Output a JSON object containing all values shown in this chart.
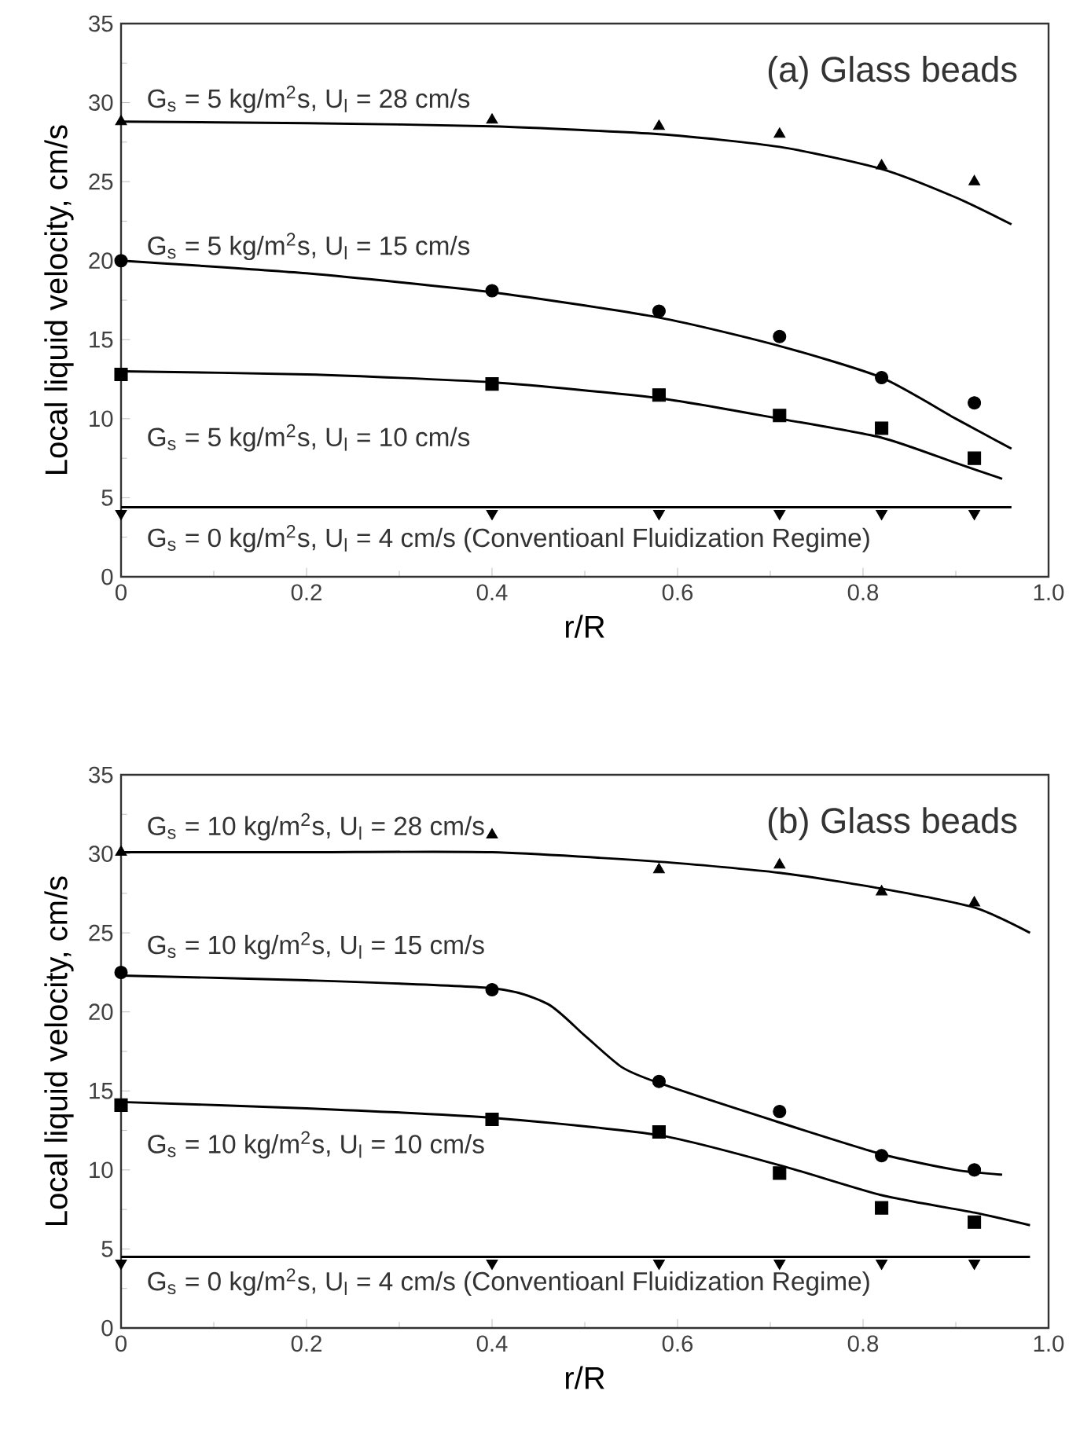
{
  "chart_data": [
    {
      "type": "scatter",
      "title": "(a) Glass beads",
      "xlabel": "r/R",
      "ylabel": "Local liquid velocity, cm/s",
      "xlim": [
        0,
        1
      ],
      "xticks": [
        0,
        0.2,
        0.4,
        0.6,
        0.8,
        {
          "value": 1,
          "label": "1.0"
        }
      ],
      "ylim": [
        0,
        35
      ],
      "yticks": [
        0,
        5,
        10,
        15,
        20,
        25,
        30,
        35
      ],
      "grid": false,
      "series": [
        {
          "marker": "triangle",
          "color": "#000000",
          "x": [
            0,
            0.4,
            0.58,
            0.71,
            0.82,
            0.92
          ],
          "values": [
            28.8,
            28.9,
            28.5,
            28.0,
            26.0,
            25.0
          ]
        },
        {
          "type": "line",
          "color": "#000000",
          "x": [
            0,
            0.2,
            0.4,
            0.58,
            0.71,
            0.82,
            0.9,
            0.96
          ],
          "values": [
            28.8,
            28.7,
            28.5,
            28.0,
            27.2,
            25.8,
            24.0,
            22.3
          ]
        },
        {
          "marker": "circle",
          "color": "#000000",
          "x": [
            0,
            0.4,
            0.58,
            0.71,
            0.82,
            0.92
          ],
          "values": [
            20.0,
            18.1,
            16.8,
            15.2,
            12.6,
            11.0
          ]
        },
        {
          "type": "line",
          "color": "#000000",
          "x": [
            0,
            0.2,
            0.4,
            0.58,
            0.71,
            0.82,
            0.9,
            0.96
          ],
          "values": [
            20.0,
            19.2,
            18.0,
            16.4,
            14.6,
            12.6,
            10.0,
            8.1
          ]
        },
        {
          "marker": "square",
          "color": "#000000",
          "x": [
            0,
            0.4,
            0.58,
            0.71,
            0.82,
            0.92
          ],
          "values": [
            12.8,
            12.2,
            11.5,
            10.2,
            9.4,
            7.5
          ]
        },
        {
          "type": "line",
          "color": "#000000",
          "x": [
            0,
            0.2,
            0.4,
            0.58,
            0.71,
            0.82,
            0.9,
            0.95
          ],
          "values": [
            13.0,
            12.8,
            12.3,
            11.3,
            10.0,
            8.8,
            7.2,
            6.2
          ]
        },
        {
          "marker": "triangle down",
          "color": "#000000",
          "x": [
            0,
            0.4,
            0.58,
            0.71,
            0.82,
            0.92
          ],
          "values": [
            4.0,
            4.0,
            4.0,
            4.0,
            4.0,
            4.0
          ]
        },
        {
          "type": "line",
          "color": "#000000",
          "x": [
            0,
            0.96
          ],
          "values": [
            4.4,
            4.4
          ]
        }
      ],
      "annotations": [
        "G$_{s}$ = 5 kg/m$^{2}$s, U$_{l}$ = 28 cm/s",
        "G$_{s}$ = 5 kg/m$^{2}$s, U$_{l}$ = 15 cm/s",
        "G$_{s}$ = 5 kg/m$^{2}$s, U$_{l}$ = 10 cm/s",
        "G$_{s}$ = 0 kg/m$^{2}$s, U$_{l}$ = 4 cm/s (Conventioanl Fluidization Regime)"
      ]
    },
    {
      "type": "scatter",
      "title": "(b) Glass beads",
      "xlabel": "r/R",
      "ylabel": "Local liquid velocity, cm/s",
      "xlim": [
        0,
        1
      ],
      "xticks": [
        0,
        0.2,
        0.4,
        0.6,
        0.8,
        {
          "value": 1,
          "label": "1.0"
        }
      ],
      "ylim": [
        0,
        35
      ],
      "yticks": [
        0,
        5,
        10,
        15,
        20,
        25,
        30,
        35
      ],
      "grid": false,
      "series": [
        {
          "marker": "triangle",
          "color": "#000000",
          "x": [
            0,
            0.4,
            0.58,
            0.71,
            0.82,
            0.92
          ],
          "values": [
            30.1,
            31.2,
            29.0,
            29.3,
            27.6,
            26.9
          ]
        },
        {
          "type": "line",
          "color": "#000000",
          "x": [
            0,
            0.2,
            0.4,
            0.58,
            0.71,
            0.82,
            0.92,
            0.98
          ],
          "values": [
            30.1,
            30.1,
            30.1,
            29.5,
            28.8,
            27.8,
            26.6,
            25.0
          ]
        },
        {
          "marker": "circle",
          "color": "#000000",
          "x": [
            0,
            0.4,
            0.58,
            0.71,
            0.82,
            0.92
          ],
          "values": [
            22.5,
            21.4,
            15.6,
            13.7,
            10.9,
            10.0
          ]
        },
        {
          "type": "line",
          "color": "#000000",
          "x": [
            0,
            0.2,
            0.4,
            0.46,
            0.5,
            0.54,
            0.58,
            0.71,
            0.82,
            0.9,
            0.95
          ],
          "values": [
            22.3,
            22.0,
            21.5,
            20.5,
            18.5,
            16.5,
            15.5,
            13.0,
            11.0,
            10.0,
            9.7
          ]
        },
        {
          "marker": "square",
          "color": "#000000",
          "x": [
            0,
            0.4,
            0.58,
            0.71,
            0.82,
            0.92
          ],
          "values": [
            14.1,
            13.2,
            12.4,
            9.8,
            7.6,
            6.7
          ]
        },
        {
          "type": "line",
          "color": "#000000",
          "x": [
            0,
            0.2,
            0.4,
            0.58,
            0.71,
            0.82,
            0.92,
            0.98
          ],
          "values": [
            14.3,
            13.9,
            13.3,
            12.2,
            10.3,
            8.4,
            7.3,
            6.5
          ]
        },
        {
          "marker": "triangle down",
          "color": "#000000",
          "x": [
            0,
            0.4,
            0.58,
            0.71,
            0.82,
            0.92
          ],
          "values": [
            4.1,
            4.1,
            4.1,
            4.1,
            4.1,
            4.1
          ]
        },
        {
          "type": "line",
          "color": "#000000",
          "x": [
            0,
            0.98
          ],
          "values": [
            4.5,
            4.5
          ]
        }
      ],
      "annotations": [
        "G$_{s}$ = 10 kg/m$^{2}$s, U$_{l}$ = 28 cm/s",
        "G$_{s}$ = 10 kg/m$^{2}$s, U$_{l}$ = 15 cm/s",
        "G$_{s}$ = 10 kg/m$^{2}$s, U$_{l}$ = 10 cm/s",
        "G$_{s}$ = 0 kg/m$^{2}$s, U$_{l}$ = 4 cm/s (Conventioanl Fluidization Regime)"
      ]
    }
  ]
}
